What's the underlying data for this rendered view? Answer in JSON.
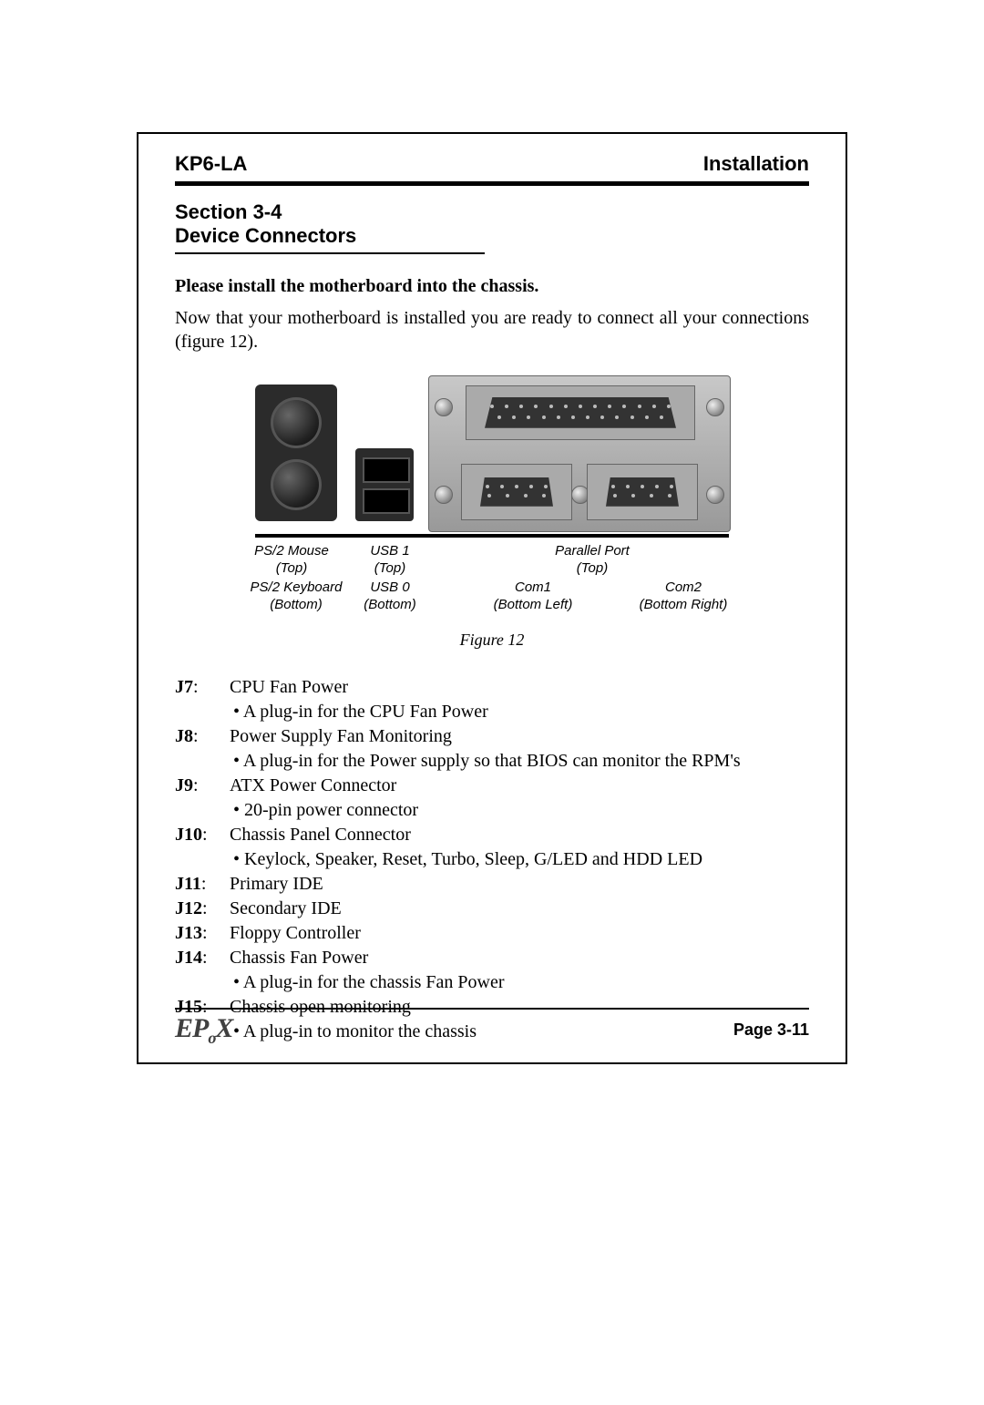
{
  "header": {
    "left": "KP6-LA",
    "right": "Installation"
  },
  "section": {
    "line1": "Section 3-4",
    "line2": "Device Connectors"
  },
  "instruction": "Please install the motherboard into the chassis.",
  "body": "Now that your motherboard is installed you are ready to connect all your connections (figure 12).",
  "labels": {
    "ps2mouse": "PS/2 Mouse",
    "ps2mouse2": "(Top)",
    "ps2kbd": "PS/2 Keyboard",
    "ps2kbd2": "(Bottom)",
    "usb1": "USB 1",
    "usb1b": "(Top)",
    "usb0": "USB 0",
    "usb0b": "(Bottom)",
    "par": "Parallel Port",
    "par2": "(Top)",
    "com1": "Com1",
    "com1b": "(Bottom Left)",
    "com2": "Com2",
    "com2b": "(Bottom Right)"
  },
  "figure_caption": "Figure 12",
  "connectors": [
    {
      "j": "J7",
      "title": "CPU Fan Power",
      "bullets": [
        "A plug-in for the CPU Fan Power"
      ]
    },
    {
      "j": "J8",
      "title": "Power Supply Fan Monitoring",
      "bullets": [
        "A plug-in for the Power supply so that BIOS can monitor the RPM's"
      ]
    },
    {
      "j": "J9",
      "title": "ATX Power Connector",
      "bullets": [
        "20-pin power connector"
      ]
    },
    {
      "j": "J10",
      "title": "Chassis Panel Connector",
      "bullets": [
        "Keylock, Speaker, Reset, Turbo, Sleep, G/LED and HDD LED"
      ]
    },
    {
      "j": "J11",
      "title": "Primary IDE",
      "bullets": []
    },
    {
      "j": "J12",
      "title": "Secondary IDE",
      "bullets": []
    },
    {
      "j": "J13",
      "title": "Floppy Controller",
      "bullets": []
    },
    {
      "j": "J14",
      "title": "Chassis Fan Power",
      "bullets": [
        "A plug-in for the chassis Fan Power"
      ]
    },
    {
      "j": "J15",
      "title": "Chassis open monitoring",
      "bullets": [
        "A plug-in to monitor the chassis"
      ]
    }
  ],
  "page_footer": "Page 3-11",
  "logo_text": "EPoX"
}
